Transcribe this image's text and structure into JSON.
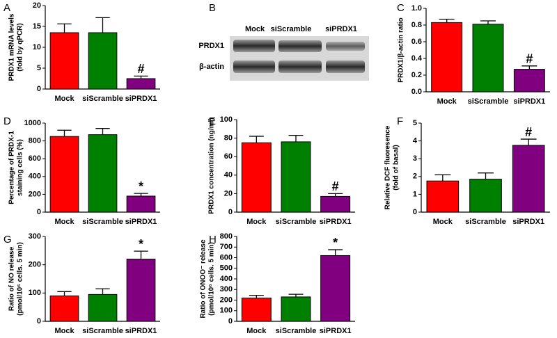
{
  "chart_data": [
    {
      "panel": "A",
      "type": "bar",
      "ylabel": [
        "PRDX1 mRNA levels",
        "(fold by qPCR)"
      ],
      "categories": [
        "Mock",
        "siScramble",
        "siPRDX1"
      ],
      "values": [
        13.5,
        13.5,
        2.5
      ],
      "errors": [
        2.1,
        3.6,
        0.6
      ],
      "colors": [
        "#ff0000",
        "#008000",
        "#800080"
      ],
      "annotations": [
        null,
        null,
        "#"
      ],
      "ylim": [
        0,
        20
      ],
      "yticks": [
        0,
        5,
        10,
        15,
        20
      ]
    },
    {
      "panel": "C",
      "type": "bar",
      "ylabel": [
        "PRDX1/β-actin ratio"
      ],
      "categories": [
        "Mock",
        "siScramble",
        "siPRDX1"
      ],
      "values": [
        0.83,
        0.81,
        0.27
      ],
      "errors": [
        0.04,
        0.04,
        0.04
      ],
      "colors": [
        "#ff0000",
        "#008000",
        "#800080"
      ],
      "annotations": [
        null,
        null,
        "#"
      ],
      "ylim": [
        0,
        1
      ],
      "yticks": [
        {
          "value": 0,
          "label": "0.0"
        },
        0.2,
        0.4,
        0.6,
        0.8,
        {
          "value": 1,
          "label": "1.0"
        }
      ]
    },
    {
      "panel": "D",
      "type": "bar",
      "ylabel": [
        "Percentage of PRDX-1",
        "staining cells (%)"
      ],
      "categories": [
        "Mock",
        "siScramble",
        "siPRDX1"
      ],
      "values": [
        850,
        870,
        180
      ],
      "errors": [
        70,
        70,
        30
      ],
      "colors": [
        "#ff0000",
        "#008000",
        "#800080"
      ],
      "annotations": [
        null,
        null,
        "*"
      ],
      "ylim": [
        0,
        1000
      ],
      "yticks": [
        0,
        200,
        400,
        600,
        800,
        1000
      ]
    },
    {
      "panel": "E",
      "type": "bar",
      "ylabel": [
        "PRDX1 concentration (ng/ml)"
      ],
      "categories": [
        "Mock",
        "siScramble",
        "siPRDX1"
      ],
      "values": [
        75,
        76,
        17
      ],
      "errors": [
        7,
        7,
        3
      ],
      "colors": [
        "#ff0000",
        "#008000",
        "#800080"
      ],
      "annotations": [
        null,
        null,
        "#"
      ],
      "ylim": [
        0,
        100
      ],
      "yticks": [
        0,
        20,
        40,
        60,
        80,
        100
      ]
    },
    {
      "panel": "F",
      "type": "bar",
      "ylabel": [
        "Relative DCF fluoresence",
        "(fold of basal)"
      ],
      "categories": [
        "Mock",
        "siScramble",
        "siPRDX1"
      ],
      "values": [
        1.75,
        1.85,
        3.75
      ],
      "errors": [
        0.35,
        0.35,
        0.35
      ],
      "colors": [
        "#ff0000",
        "#008000",
        "#800080"
      ],
      "annotations": [
        null,
        null,
        "#"
      ],
      "ylim": [
        0,
        5
      ],
      "yticks": [
        0,
        1,
        2,
        3,
        4,
        5
      ]
    },
    {
      "panel": "G",
      "type": "bar",
      "ylabel": [
        "Ratio of NO release",
        "(pmol/10⁶ cells. 5 min)"
      ],
      "categories": [
        "Mock",
        "siScramble",
        "siPRDX1"
      ],
      "values": [
        90,
        95,
        220
      ],
      "errors": [
        15,
        20,
        28
      ],
      "colors": [
        "#ff0000",
        "#008000",
        "#800080"
      ],
      "annotations": [
        null,
        null,
        "*"
      ],
      "ylim": [
        0,
        300
      ],
      "yticks": [
        0,
        100,
        200,
        300
      ]
    },
    {
      "panel": "H",
      "type": "bar",
      "ylabel": [
        "Ratio of ONOO⁻ release",
        "(pmol/10⁶ cells. 5 min)"
      ],
      "categories": [
        "Mock",
        "siScramble",
        "siPRDX1"
      ],
      "values": [
        220,
        230,
        620
      ],
      "errors": [
        25,
        25,
        55
      ],
      "colors": [
        "#ff0000",
        "#008000",
        "#800080"
      ],
      "annotations": [
        null,
        null,
        "*"
      ],
      "ylim": [
        0,
        800
      ],
      "yticks": [
        0,
        100,
        200,
        300,
        400,
        500,
        600,
        700,
        800
      ]
    }
  ],
  "blot": {
    "panel": "B",
    "lanes": [
      "Mock",
      "siScramble",
      "siPRDX1"
    ],
    "rows": [
      "PRDX1",
      "β-actin"
    ]
  }
}
